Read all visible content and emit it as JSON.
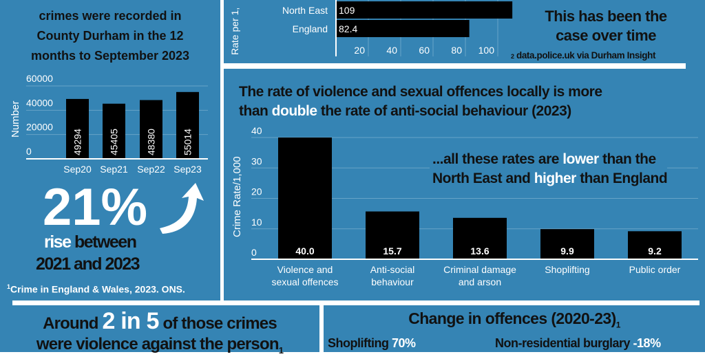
{
  "colors": {
    "background": "#3584b4",
    "bar": "#000000",
    "divider": "#ffffff",
    "highlight": "#ffffff"
  },
  "left_panel": {
    "intro_lines": [
      "crimes were recorded in",
      "County Durham in the 12",
      "months to September 2023"
    ],
    "big_stat": "21%",
    "rise_word": "rise",
    "between_word": "between",
    "years": "2021 and 2023",
    "footnote_mark": "1",
    "footnote": "Crime in England & Wales, 2023. ONS.",
    "arrow_icon": "curved-up-arrow-icon"
  },
  "top_right": {
    "headline_lines": [
      "This has been the",
      "case over time"
    ],
    "source_mark": "2",
    "source": "data.police.uk via Durham Insight"
  },
  "middle": {
    "title_pre": "The rate of violence and sexual offences locally is more",
    "title_line2_pre": "than ",
    "title_highlight": "double",
    "title_line2_post": " the rate of anti-social behaviour (2023)",
    "note_line1_pre": "...all these rates are ",
    "note_line1_hl": "lower",
    "note_line1_post": " than the",
    "note_line2_pre": "North East and ",
    "note_line2_hl": "higher",
    "note_line2_post": " than England"
  },
  "bottom_left": {
    "pre": "Around ",
    "highlight": "2 in 5",
    "post": " of those crimes",
    "line2": "were violence against the person",
    "mark": "1"
  },
  "bottom_right": {
    "title": "Change in offences (2020-23)",
    "mark": "1",
    "items": [
      {
        "label": "Shoplifting ",
        "value": "70%"
      },
      {
        "label": "Non-residential burglary ",
        "value": "-18%"
      }
    ]
  },
  "chart_data": [
    {
      "type": "bar",
      "orientation": "vertical",
      "categories": [
        "Sep20",
        "Sep21",
        "Sep22",
        "Sep23"
      ],
      "values": [
        49294,
        45405,
        48380,
        55014
      ],
      "data_labels": [
        "49294",
        "45405",
        "48380",
        "55014"
      ],
      "ylabel": "Number",
      "ylim": [
        0,
        60000
      ],
      "yticks": [
        "0",
        "20000",
        "40000",
        "60000"
      ],
      "grid": true
    },
    {
      "type": "bar",
      "orientation": "horizontal",
      "categories": [
        "North East",
        "England"
      ],
      "values": [
        109,
        82.4
      ],
      "data_labels": [
        "109",
        "82.4"
      ],
      "ylabel": "Rate per 1,",
      "xlim": [
        0,
        115
      ],
      "xticks": [
        "20",
        "40",
        "60",
        "80",
        "100"
      ],
      "grid": true
    },
    {
      "type": "bar",
      "orientation": "vertical",
      "categories": [
        [
          "Violence and",
          "sexual offences"
        ],
        [
          "Anti-social",
          "behaviour"
        ],
        [
          "Criminal damage",
          "and arson"
        ],
        [
          "Shoplifting"
        ],
        [
          "Public order"
        ]
      ],
      "values": [
        40.0,
        15.7,
        13.6,
        9.9,
        9.2
      ],
      "data_labels": [
        "40.0",
        "15.7",
        "13.6",
        "9.9",
        "9.2"
      ],
      "ylabel": "Crime Rate/1,000",
      "ylim": [
        0,
        40
      ],
      "yticks": [
        "0",
        "10",
        "20",
        "30",
        "40"
      ],
      "grid": true
    }
  ]
}
